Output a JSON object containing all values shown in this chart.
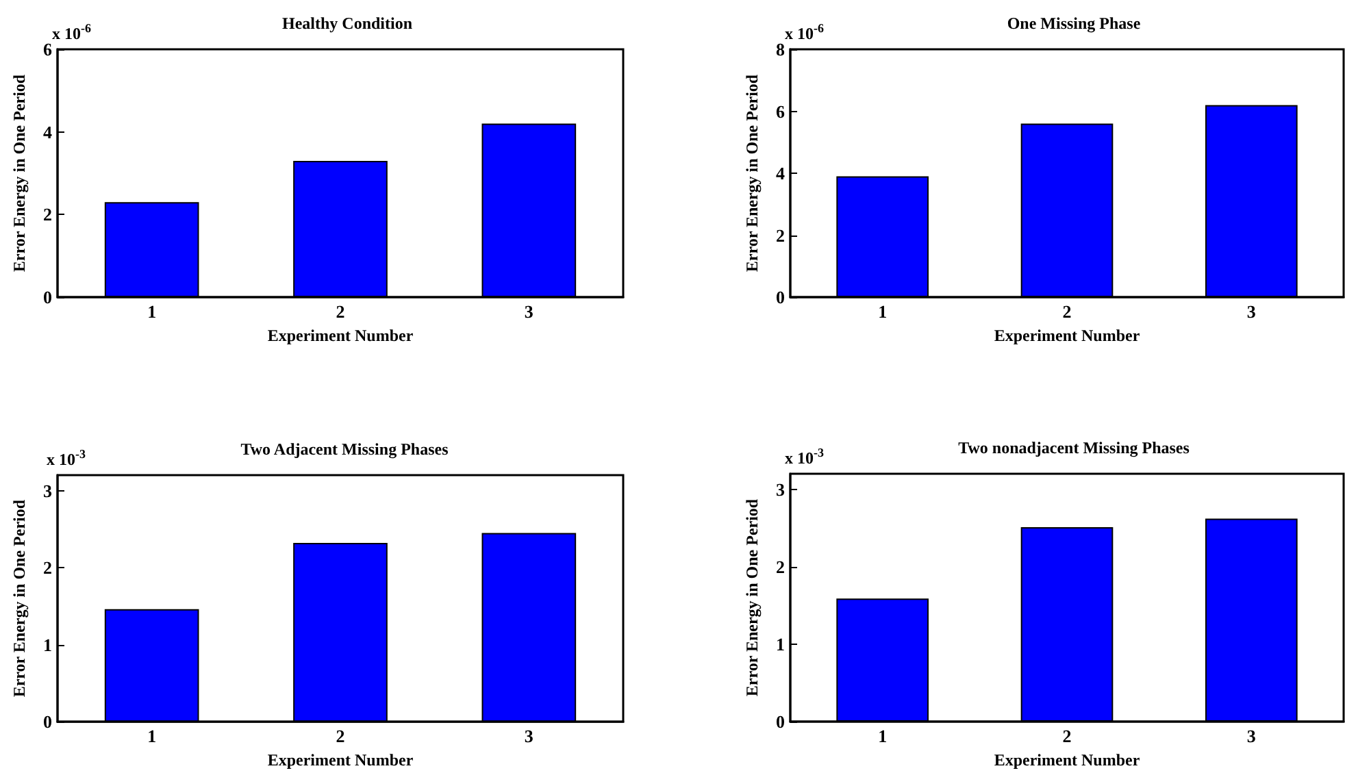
{
  "chart_data": [
    {
      "type": "bar",
      "title": "Healthy Condition",
      "xlabel": "Experiment Number",
      "ylabel": "Error Energy in One Period",
      "annotations": [
        "x 10$^{-6}$"
      ],
      "categories": [
        "1",
        "2",
        "3"
      ],
      "values": [
        2.3,
        3.3,
        4.2
      ],
      "color": "#0000ff",
      "ylim": [
        0,
        6
      ],
      "yticks": [
        0,
        2,
        4,
        6
      ],
      "grid": false
    },
    {
      "type": "bar",
      "title": "One Missing Phase",
      "xlabel": "Experiment Number",
      "ylabel": "Error Energy in One Period",
      "annotations": [
        "x 10$^{-6}$"
      ],
      "categories": [
        "1",
        "2",
        "3"
      ],
      "values": [
        3.9,
        5.6,
        6.2
      ],
      "color": "#0000ff",
      "ylim": [
        0,
        8
      ],
      "yticks": [
        0,
        2,
        4,
        6,
        8
      ],
      "grid": false
    },
    {
      "type": "bar",
      "title": "Two Adjacent Missing Phases",
      "xlabel": "Experiment Number",
      "ylabel": "Error Energy in One Period",
      "annotations": [
        "x 10$^{-3}$"
      ],
      "categories": [
        "1",
        "2",
        "3"
      ],
      "values": [
        1.46,
        2.32,
        2.45
      ],
      "color": "#0000ff",
      "ylim": [
        0,
        3.2
      ],
      "yticks": [
        0,
        1,
        2,
        3
      ],
      "grid": false
    },
    {
      "type": "bar",
      "title": "Two nonadjacent Missing Phases",
      "xlabel": "Experiment Number",
      "ylabel": "Error Energy in One Period",
      "annotations": [
        "x 10$^{-3}$"
      ],
      "categories": [
        "1",
        "2",
        "3"
      ],
      "values": [
        1.59,
        2.51,
        2.62
      ],
      "color": "#0000ff",
      "ylim": [
        0,
        3.2
      ],
      "yticks": [
        0,
        1,
        2,
        3
      ],
      "grid": false
    }
  ]
}
